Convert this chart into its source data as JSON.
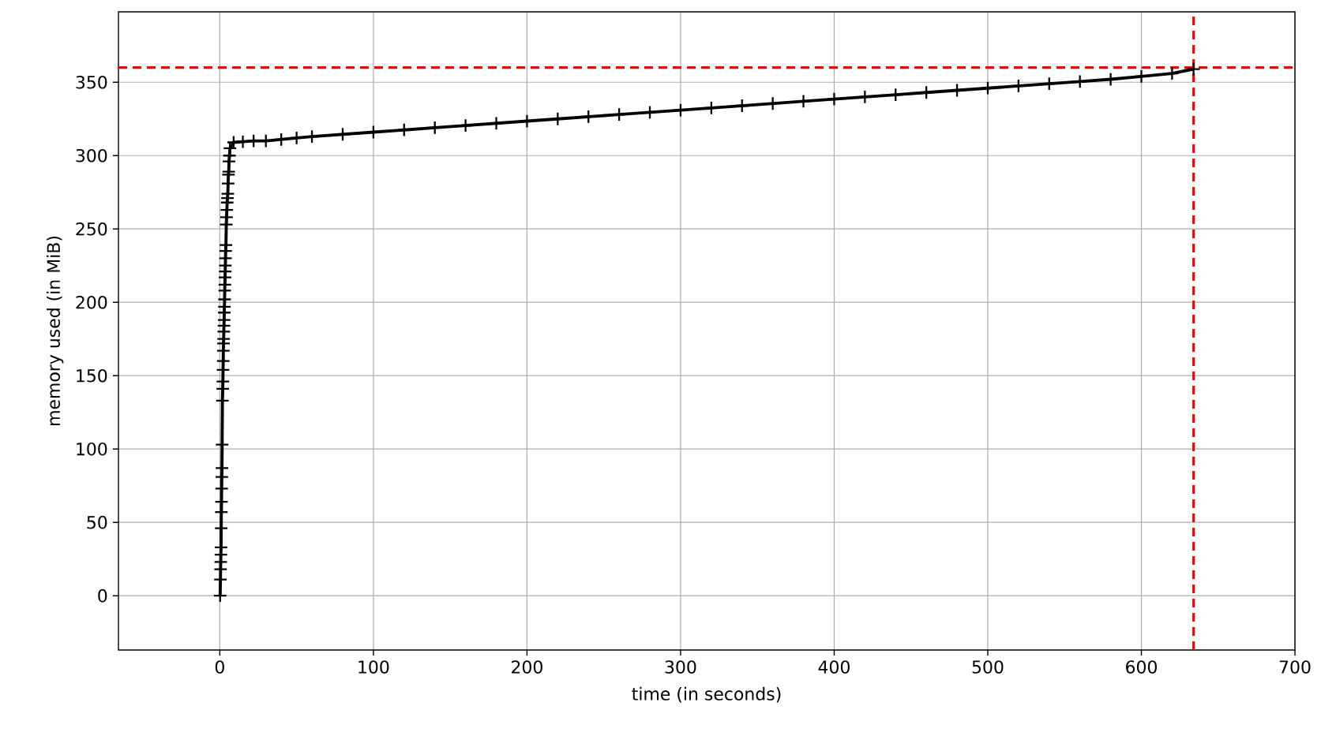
{
  "chart_data": {
    "type": "line",
    "xlabel": "time (in seconds)",
    "ylabel": "memory used (in MiB)",
    "xlim": [
      -66,
      700
    ],
    "ylim": [
      -37,
      398
    ],
    "xticks": [
      0,
      100,
      200,
      300,
      400,
      500,
      600,
      700
    ],
    "yticks": [
      0,
      50,
      100,
      150,
      200,
      250,
      300,
      350
    ],
    "grid": true,
    "marker": "cross",
    "line_style": "solid",
    "series": [
      {
        "color": "#000000",
        "x": [
          0.2,
          0.4,
          0.5,
          0.6,
          0.7,
          0.8,
          0.9,
          1.0,
          1.1,
          1.2,
          1.3,
          1.4,
          1.5,
          1.7,
          1.9,
          2.0,
          2.1,
          2.2,
          2.3,
          2.4,
          2.5,
          2.6,
          2.7,
          2.8,
          2.9,
          3.0,
          3.1,
          3.2,
          3.3,
          3.4,
          3.5,
          3.6,
          3.7,
          3.8,
          4.0,
          4.2,
          4.4,
          4.6,
          4.8,
          5.0,
          5.2,
          5.4,
          5.6,
          5.8,
          6.0,
          6.3,
          6.6,
          9,
          15,
          22,
          30,
          40,
          50,
          60,
          80,
          100,
          120,
          140,
          160,
          180,
          200,
          220,
          240,
          260,
          280,
          300,
          320,
          340,
          360,
          380,
          400,
          420,
          440,
          460,
          480,
          500,
          520,
          540,
          560,
          580,
          600,
          620,
          634
        ],
        "values": [
          0,
          11,
          18,
          23,
          28,
          33,
          46,
          57,
          64,
          73,
          81,
          87,
          103,
          133,
          141,
          146,
          154,
          160,
          167,
          172,
          175,
          180,
          184,
          188,
          193,
          197,
          202,
          208,
          212,
          217,
          221,
          225,
          230,
          235,
          239,
          253,
          258,
          263,
          268,
          271,
          274,
          281,
          287,
          289,
          296,
          300,
          305,
          309,
          309.5,
          310,
          310,
          311,
          312,
          313,
          314.5,
          316,
          317.5,
          319,
          320.5,
          322,
          323.5,
          325,
          326.5,
          328,
          329.5,
          331,
          332.5,
          334,
          335.5,
          337,
          338.5,
          340,
          341.5,
          343,
          344.5,
          346,
          347.5,
          349,
          350.5,
          352,
          354,
          356,
          359
        ]
      }
    ],
    "ref_lines": [
      {
        "axis": "y",
        "value": 360,
        "color": "#ff0000",
        "line_style": "dashed"
      },
      {
        "axis": "x",
        "value": 634,
        "color": "#ff0000",
        "line_style": "dashed"
      }
    ]
  }
}
